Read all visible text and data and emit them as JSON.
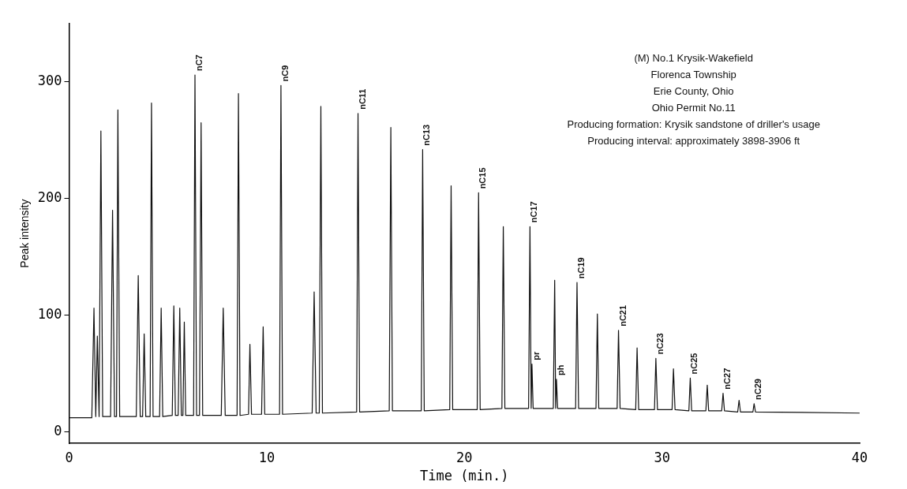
{
  "chart_data": {
    "type": "line",
    "xlabel": "Time (min.)",
    "ylabel": "Peak intensity",
    "xlim": [
      0,
      40
    ],
    "xticks": [
      0,
      10,
      20,
      30,
      40
    ],
    "ylim": [
      -10,
      350
    ],
    "yticks": [
      0,
      100,
      200,
      300
    ],
    "grid": false,
    "legend": false,
    "marker": "none",
    "line_style": "solid",
    "series": [
      {
        "color": "#111111",
        "x": [
          0,
          1.15,
          1.26,
          1.35,
          1.43,
          1.52,
          1.61,
          1.7,
          2.1,
          2.2,
          2.3,
          2.4,
          2.47,
          2.56,
          3.4,
          3.5,
          3.6,
          3.72,
          3.8,
          3.88,
          4.1,
          4.17,
          4.25,
          4.58,
          4.66,
          4.74,
          5.22,
          5.3,
          5.38,
          5.52,
          5.6,
          5.68,
          5.76,
          5.83,
          5.9,
          6.3,
          6.37,
          6.45,
          6.6,
          6.68,
          6.76,
          7.7,
          7.8,
          7.9,
          8.5,
          8.57,
          8.65,
          9.08,
          9.15,
          9.23,
          9.74,
          9.82,
          9.9,
          10.65,
          10.72,
          10.8,
          12.3,
          12.4,
          12.5,
          12.66,
          12.74,
          12.82,
          14.55,
          14.62,
          14.7,
          16.2,
          16.28,
          16.36,
          17.82,
          17.89,
          17.97,
          19.26,
          19.33,
          19.41,
          20.65,
          20.72,
          20.8,
          21.9,
          21.97,
          22.05,
          23.25,
          23.32,
          23.38,
          23.42,
          23.48,
          24.5,
          24.57,
          24.62,
          24.66,
          24.72,
          25.63,
          25.7,
          25.78,
          26.66,
          26.73,
          26.8,
          27.73,
          27.8,
          27.88,
          28.67,
          28.74,
          28.82,
          29.62,
          29.69,
          29.77,
          30.51,
          30.58,
          30.66,
          31.36,
          31.43,
          31.5,
          32.22,
          32.29,
          32.36,
          33.02,
          33.09,
          33.16,
          33.83,
          33.9,
          33.97,
          34.6,
          34.66,
          34.73,
          40
        ],
        "values": [
          12,
          12,
          106,
          13,
          82,
          13,
          258,
          13,
          13,
          190,
          13,
          13,
          276,
          13,
          13,
          134,
          13,
          13,
          84,
          13,
          13,
          282,
          13,
          13,
          106,
          13,
          14,
          108,
          14,
          14,
          106,
          14,
          14,
          94,
          14,
          14,
          306,
          14,
          14,
          265,
          14,
          14,
          106,
          14,
          14,
          290,
          14,
          15,
          75,
          15,
          15,
          90,
          15,
          15,
          297,
          15,
          16,
          120,
          16,
          16,
          279,
          16,
          17,
          273,
          17,
          18,
          261,
          18,
          18,
          242,
          18,
          19,
          211,
          19,
          19,
          205,
          19,
          20,
          176,
          20,
          20,
          176,
          20,
          58,
          20,
          20,
          130,
          20,
          45,
          20,
          20,
          128,
          20,
          20,
          101,
          20,
          20,
          87,
          20,
          19,
          72,
          19,
          19,
          63,
          19,
          19,
          54,
          19,
          18,
          46,
          18,
          18,
          40,
          18,
          18,
          33,
          18,
          17,
          27,
          17,
          17,
          24,
          17,
          16
        ]
      }
    ],
    "annotations": [
      "(M) No.1 Krysik-Wakefield",
      "Florenca Township",
      "Erie County, Ohio",
      "Ohio Permit No.11",
      "Producing formation: Krysik sandstone of driller's usage",
      "Producing interval: approximately 3898-3906 ft",
      {
        "text": "nC7",
        "x": 6.37,
        "y": 306
      },
      {
        "text": "nC9",
        "x": 10.72,
        "y": 297
      },
      {
        "text": "nC11",
        "x": 14.62,
        "y": 273
      },
      {
        "text": "nC13",
        "x": 17.89,
        "y": 242
      },
      {
        "text": "nC15",
        "x": 20.72,
        "y": 205
      },
      {
        "text": "nC17",
        "x": 23.32,
        "y": 176
      },
      {
        "text": "pr",
        "x": 23.42,
        "y": 58
      },
      {
        "text": "ph",
        "x": 24.66,
        "y": 45
      },
      {
        "text": "nC19",
        "x": 25.7,
        "y": 128
      },
      {
        "text": "nC21",
        "x": 27.8,
        "y": 87
      },
      {
        "text": "nC23",
        "x": 29.69,
        "y": 63
      },
      {
        "text": "nC25",
        "x": 31.43,
        "y": 46
      },
      {
        "text": "nC27",
        "x": 33.09,
        "y": 33
      },
      {
        "text": "nC29",
        "x": 34.66,
        "y": 24
      }
    ]
  }
}
